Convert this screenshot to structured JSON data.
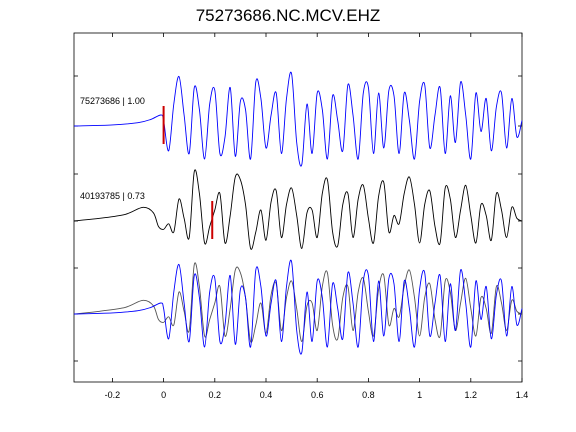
{
  "chart_data": {
    "type": "line",
    "title": "75273686.NC.MCV.EHZ",
    "xlabel": "",
    "ylabel": "",
    "xlim": [
      -0.35,
      1.4
    ],
    "xticks": [
      -0.2,
      0,
      0.2,
      0.4,
      0.6,
      0.8,
      1,
      1.2,
      1.4
    ],
    "xtick_labels": [
      "-0.2",
      "0",
      "0.2",
      "0.4",
      "0.6",
      "0.8",
      "1",
      "1.2",
      "1.4"
    ],
    "grid": false,
    "traces": [
      {
        "label": "75273686 | 1.00",
        "color": "#0000ff",
        "pick_time": 0.0,
        "pick_color": "#cc0000",
        "x": [
          -0.35,
          -0.2,
          -0.1,
          -0.05,
          -0.01,
          0.0,
          0.02,
          0.04,
          0.06,
          0.08,
          0.1,
          0.12,
          0.14,
          0.16,
          0.18,
          0.2,
          0.22,
          0.24,
          0.26,
          0.28,
          0.3,
          0.32,
          0.34,
          0.36,
          0.38,
          0.4,
          0.42,
          0.44,
          0.46,
          0.48,
          0.5,
          0.52,
          0.54,
          0.56,
          0.58,
          0.6,
          0.62,
          0.64,
          0.66,
          0.68,
          0.7,
          0.72,
          0.74,
          0.76,
          0.78,
          0.8,
          0.82,
          0.84,
          0.86,
          0.88,
          0.9,
          0.92,
          0.94,
          0.96,
          0.98,
          1.0,
          1.02,
          1.04,
          1.06,
          1.08,
          1.1,
          1.12,
          1.14,
          1.16,
          1.18,
          1.2,
          1.22,
          1.24,
          1.26,
          1.28,
          1.3,
          1.32,
          1.34,
          1.36,
          1.38,
          1.4
        ],
        "y": [
          0.0,
          0.02,
          0.06,
          0.12,
          0.2,
          0.1,
          -0.45,
          0.4,
          0.9,
          0.2,
          -0.5,
          0.7,
          0.3,
          -0.6,
          0.4,
          0.65,
          -0.5,
          -0.2,
          0.7,
          -0.55,
          0.45,
          0.3,
          -0.6,
          0.8,
          0.5,
          -0.4,
          0.2,
          0.6,
          -0.5,
          0.5,
          0.95,
          -0.3,
          -0.7,
          0.4,
          -0.5,
          0.6,
          0.3,
          -0.6,
          0.55,
          0.1,
          -0.45,
          0.75,
          0.2,
          -0.6,
          0.6,
          0.7,
          -0.5,
          0.6,
          -0.4,
          0.65,
          0.55,
          -0.5,
          0.6,
          0.1,
          -0.6,
          0.45,
          0.75,
          -0.4,
          0.2,
          0.7,
          -0.5,
          0.55,
          -0.3,
          0.8,
          0.2,
          -0.6,
          0.6,
          -0.1,
          0.5,
          -0.45,
          0.35,
          0.6,
          -0.4,
          0.5,
          -0.2,
          0.1
        ],
        "amplitude_scale": 1.0
      },
      {
        "label": "40193785 | 0.73",
        "color": "#000000",
        "pick_time": 0.19,
        "pick_color": "#cc0000",
        "x": [
          -0.35,
          -0.25,
          -0.15,
          -0.08,
          -0.04,
          -0.02,
          0.0,
          0.02,
          0.04,
          0.06,
          0.08,
          0.1,
          0.12,
          0.14,
          0.16,
          0.18,
          0.2,
          0.22,
          0.24,
          0.26,
          0.28,
          0.3,
          0.32,
          0.34,
          0.36,
          0.38,
          0.4,
          0.42,
          0.44,
          0.46,
          0.48,
          0.5,
          0.52,
          0.54,
          0.56,
          0.58,
          0.6,
          0.62,
          0.64,
          0.66,
          0.68,
          0.7,
          0.72,
          0.74,
          0.76,
          0.78,
          0.8,
          0.82,
          0.84,
          0.86,
          0.88,
          0.9,
          0.92,
          0.94,
          0.96,
          0.98,
          1.0,
          1.02,
          1.04,
          1.06,
          1.08,
          1.1,
          1.12,
          1.14,
          1.16,
          1.18,
          1.2,
          1.22,
          1.24,
          1.26,
          1.28,
          1.3,
          1.32,
          1.34,
          1.36,
          1.38,
          1.4
        ],
        "y": [
          0.0,
          0.05,
          0.12,
          0.25,
          0.15,
          -0.1,
          -0.15,
          -0.05,
          -0.2,
          0.4,
          0.05,
          -0.3,
          0.9,
          0.5,
          -0.4,
          -0.1,
          0.2,
          0.5,
          -0.4,
          0.1,
          0.8,
          0.75,
          0.3,
          -0.5,
          -0.2,
          0.2,
          -0.35,
          0.35,
          0.55,
          -0.3,
          0.3,
          0.6,
          0.1,
          -0.5,
          0.15,
          0.2,
          -0.3,
          0.5,
          0.75,
          -0.2,
          -0.45,
          0.3,
          0.5,
          -0.3,
          0.4,
          0.65,
          0.05,
          -0.4,
          0.45,
          0.7,
          -0.2,
          0.1,
          -0.05,
          0.5,
          0.8,
          0.3,
          -0.4,
          0.3,
          0.55,
          -0.1,
          -0.4,
          0.6,
          0.4,
          -0.3,
          0.2,
          0.65,
          0.1,
          -0.4,
          0.3,
          0.1,
          -0.35,
          0.5,
          0.2,
          -0.3,
          0.25,
          0.05,
          0.0
        ],
        "amplitude_scale": 0.73
      }
    ]
  }
}
